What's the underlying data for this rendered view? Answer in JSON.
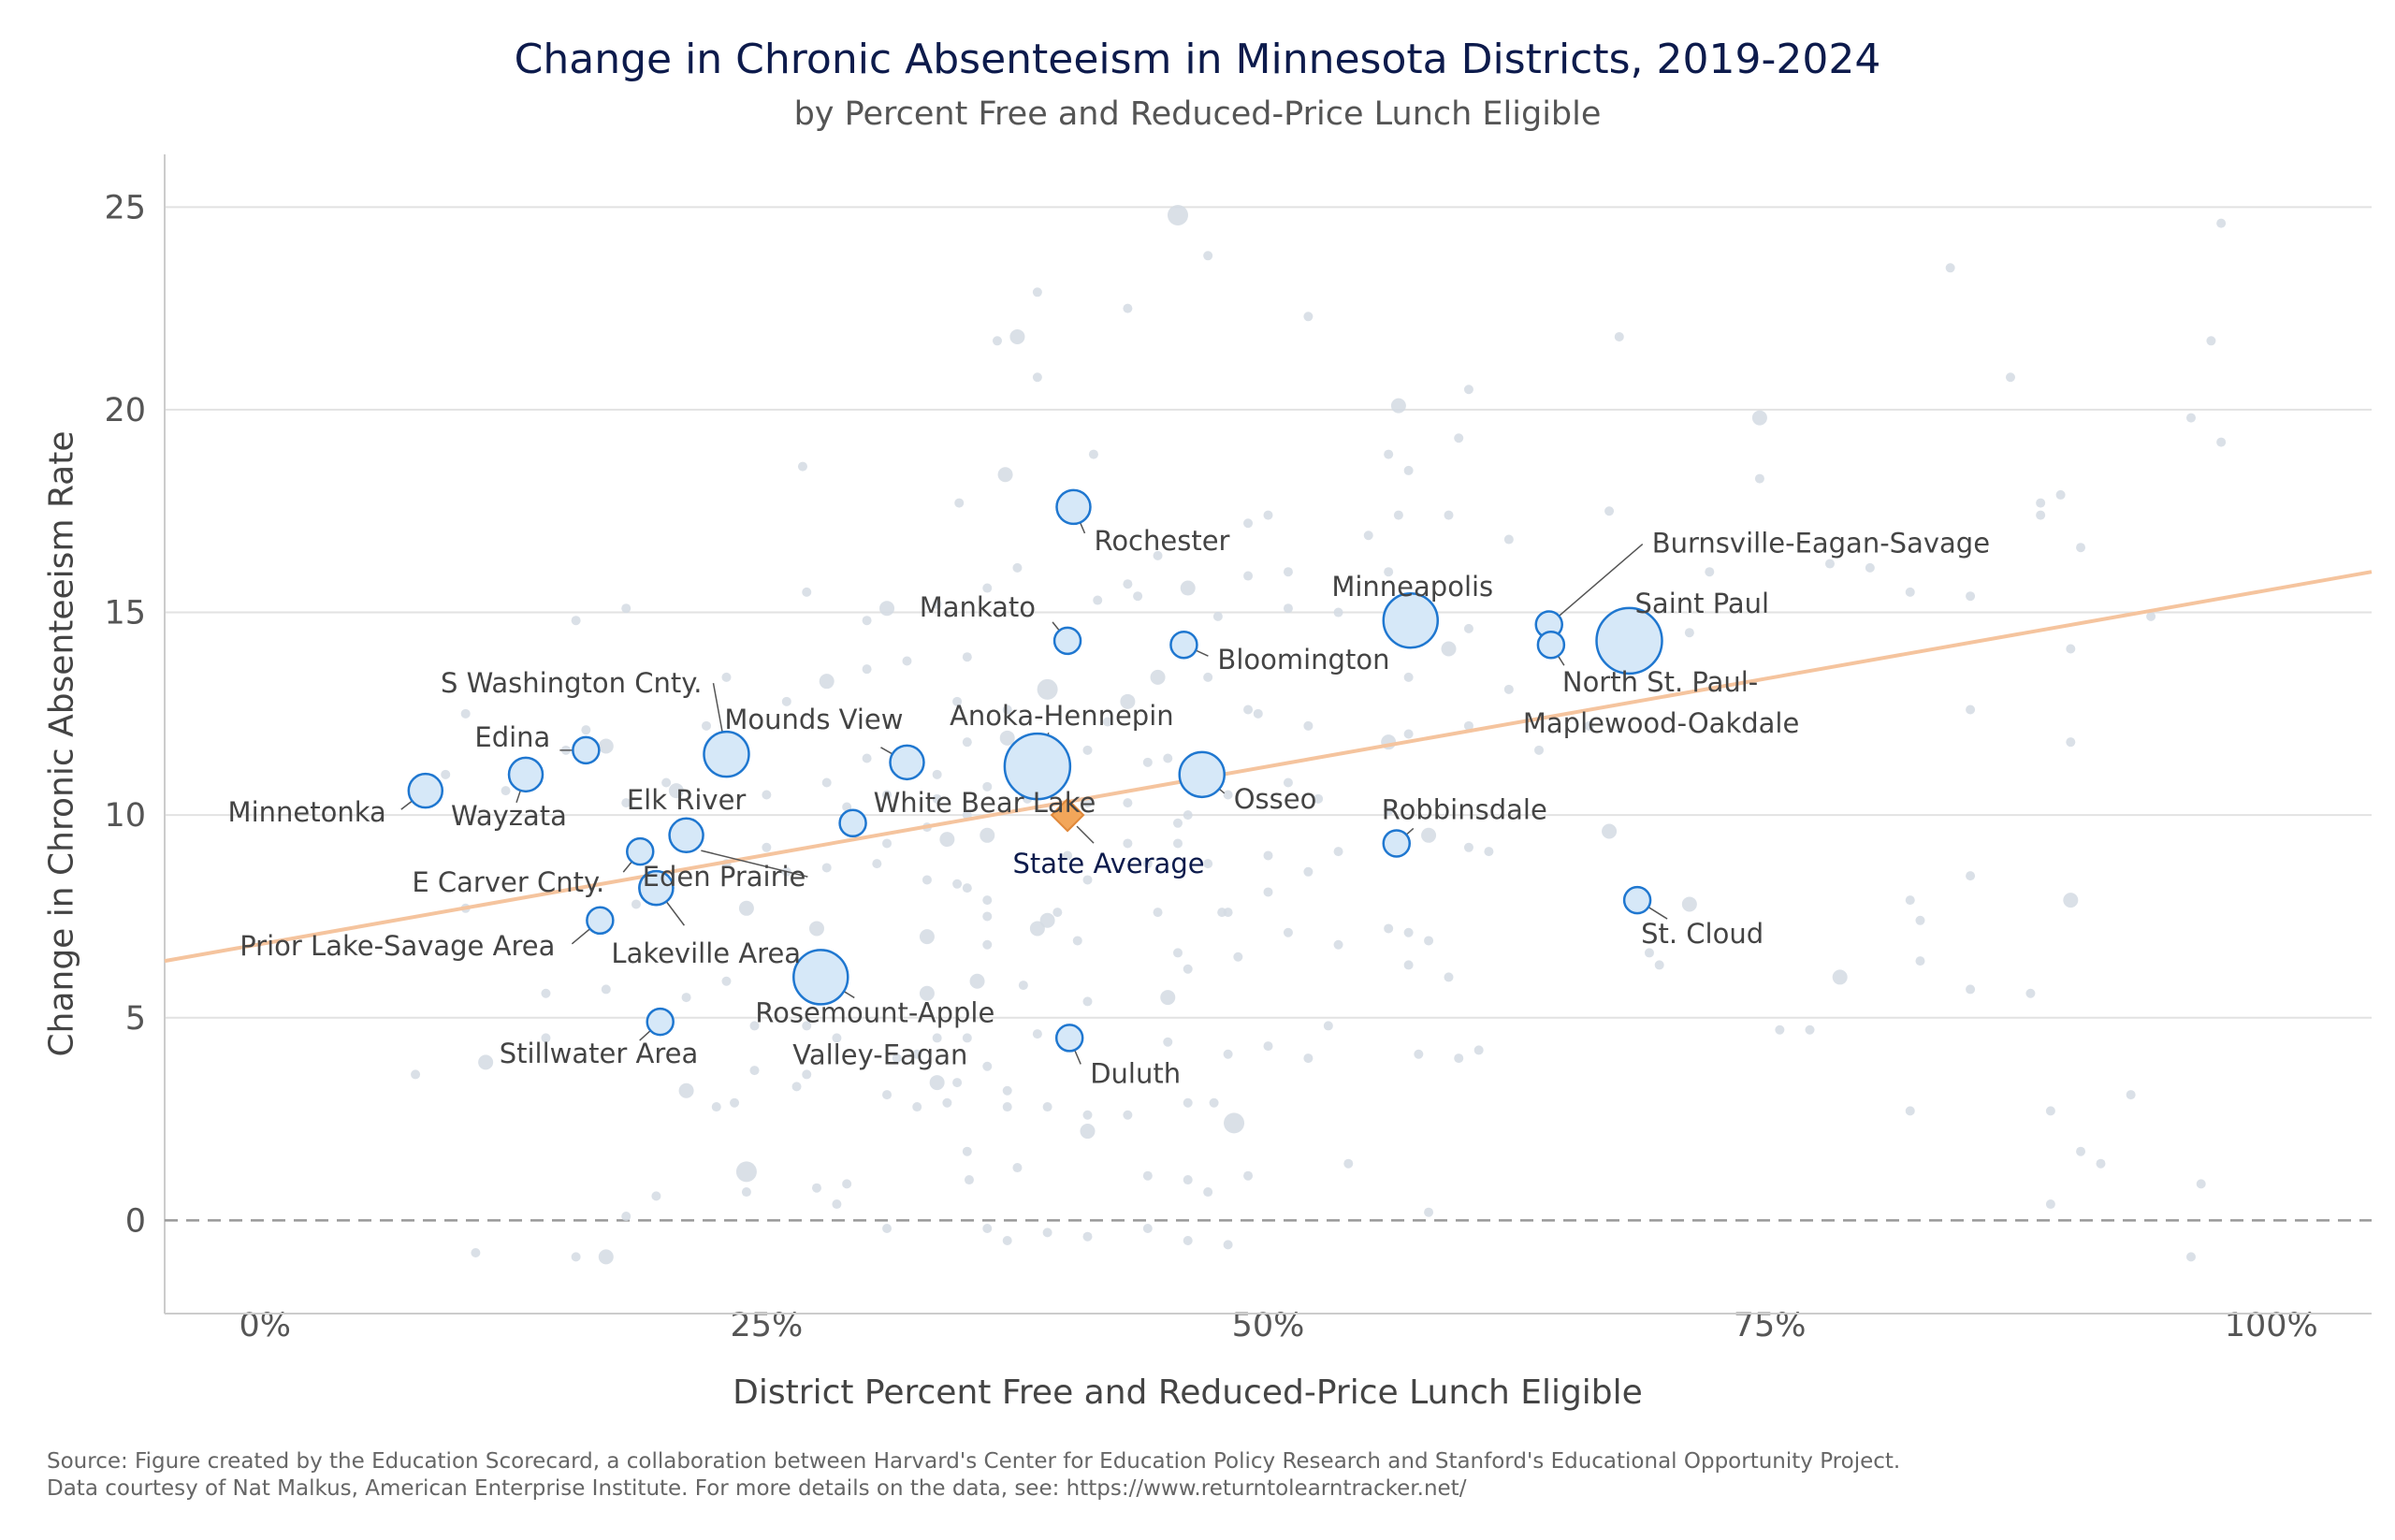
{
  "title": "Change in Chronic Absenteeism in Minnesota Districts, 2019-2024",
  "subtitle": "by Percent Free and Reduced-Price Lunch Eligible",
  "source_line1": "Source: Figure created by the Education Scorecard, a collaboration between Harvard's Center for Education Policy Research and Stanford's Educational Opportunity Project.",
  "source_line2": "Data courtesy of Nat Malkus, American Enterprise Institute. For more details on the data, see: https://www.returntolearntracker.net/",
  "colors": {
    "highlight_fill": "#d6e8f8",
    "highlight_stroke": "#1f77d0",
    "background_point": "#d4dbe3",
    "trend_line": "#f5c49e",
    "state_average": "#f2a65a",
    "zero_line": "#999999",
    "grid": "#e2e2e2"
  },
  "chart_data": {
    "type": "scatter",
    "xlabel": "District Percent Free and Reduced-Price Lunch Eligible",
    "ylabel": "Change in Chronic Absenteeism Rate",
    "xlim": [
      -0.05,
      1.05
    ],
    "ylim": [
      -2.3,
      26.3
    ],
    "x_ticks": [
      0,
      0.25,
      0.5,
      0.75,
      1.0
    ],
    "x_tick_labels": [
      "0%",
      "25%",
      "50%",
      "75%",
      "100%"
    ],
    "y_ticks": [
      0,
      5,
      10,
      15,
      20,
      25
    ],
    "y_tick_labels": [
      "0",
      "5",
      "10",
      "15",
      "20",
      "25"
    ],
    "grid": "horizontal",
    "reference_line_y": 0,
    "trend_line": {
      "x": [
        -0.05,
        1.05
      ],
      "y": [
        6.4,
        16.0
      ]
    },
    "highlighted_districts": [
      {
        "name": "Minnetonka",
        "x": 0.08,
        "y": 10.6,
        "size": 2
      },
      {
        "name": "Wayzata",
        "x": 0.13,
        "y": 11.0,
        "size": 2
      },
      {
        "name": "Edina",
        "x": 0.16,
        "y": 11.6,
        "size": 1
      },
      {
        "name": "S Washington Cnty.",
        "x": 0.23,
        "y": 11.5,
        "size": 3
      },
      {
        "name": "Elk River",
        "x": 0.21,
        "y": 9.5,
        "size": 2
      },
      {
        "name": "E Carver Cnty.",
        "x": 0.187,
        "y": 9.1,
        "size": 1
      },
      {
        "name": "Eden Prairie",
        "x": 0.195,
        "y": 8.2,
        "size": 2
      },
      {
        "name": "Prior Lake-Savage Area",
        "x": 0.167,
        "y": 7.4,
        "size": 1
      },
      {
        "name": "Lakeville Area",
        "x": 0.195,
        "y": 8.2,
        "size": 2
      },
      {
        "name": "Stillwater Area",
        "x": 0.197,
        "y": 4.9,
        "size": 1
      },
      {
        "name": "Mounds View",
        "x": 0.32,
        "y": 11.3,
        "size": 2
      },
      {
        "name": "White Bear Lake",
        "x": 0.293,
        "y": 9.8,
        "size": 1
      },
      {
        "name": "Rosemount-Apple Valley-Eagan",
        "x": 0.277,
        "y": 6.0,
        "size": 4
      },
      {
        "name": "Anoka-Hennepin",
        "x": 0.385,
        "y": 11.2,
        "size": 5
      },
      {
        "name": "Rochester",
        "x": 0.403,
        "y": 17.6,
        "size": 2
      },
      {
        "name": "Mankato",
        "x": 0.4,
        "y": 14.3,
        "size": 1
      },
      {
        "name": "Duluth",
        "x": 0.401,
        "y": 4.5,
        "size": 1
      },
      {
        "name": "Bloomington",
        "x": 0.458,
        "y": 14.2,
        "size": 1
      },
      {
        "name": "Osseo",
        "x": 0.467,
        "y": 11.0,
        "size": 3
      },
      {
        "name": "Minneapolis",
        "x": 0.571,
        "y": 14.8,
        "size": 4
      },
      {
        "name": "Robbinsdale",
        "x": 0.564,
        "y": 9.3,
        "size": 1
      },
      {
        "name": "Burnsville-Eagan-Savage",
        "x": 0.64,
        "y": 14.7,
        "size": 1
      },
      {
        "name": "North St. Paul-Maplewood-Oakdale",
        "x": 0.641,
        "y": 14.2,
        "size": 1
      },
      {
        "name": "Saint Paul",
        "x": 0.68,
        "y": 14.3,
        "size": 5
      },
      {
        "name": "St. Cloud",
        "x": 0.684,
        "y": 7.9,
        "size": 1
      }
    ],
    "state_average": {
      "name": "State Average",
      "x": 0.4,
      "y": 10.0
    },
    "background_points": [
      [
        0.455,
        24.8,
        3
      ],
      [
        0.375,
        21.8,
        2
      ],
      [
        0.47,
        23.8,
        1
      ],
      [
        0.385,
        22.9,
        1
      ],
      [
        0.43,
        22.5,
        1
      ],
      [
        0.365,
        21.7,
        1
      ],
      [
        0.52,
        22.3,
        1
      ],
      [
        0.6,
        20.5,
        1
      ],
      [
        0.675,
        21.8,
        1
      ],
      [
        0.97,
        21.7,
        1
      ],
      [
        0.975,
        24.6,
        1
      ],
      [
        0.84,
        23.5,
        1
      ],
      [
        0.87,
        20.8,
        1
      ],
      [
        0.385,
        20.8,
        1
      ],
      [
        0.565,
        20.1,
        2
      ],
      [
        0.745,
        19.8,
        2
      ],
      [
        0.96,
        19.8,
        1
      ],
      [
        0.975,
        19.2,
        1
      ],
      [
        0.595,
        19.3,
        1
      ],
      [
        0.369,
        18.4,
        2
      ],
      [
        0.268,
        18.6,
        1
      ],
      [
        0.56,
        18.9,
        1
      ],
      [
        0.57,
        18.5,
        1
      ],
      [
        0.885,
        17.7,
        1
      ],
      [
        0.895,
        17.9,
        1
      ],
      [
        0.885,
        17.4,
        1
      ],
      [
        0.745,
        18.3,
        1
      ],
      [
        0.413,
        18.9,
        1
      ],
      [
        0.55,
        16.9,
        1
      ],
      [
        0.62,
        16.8,
        1
      ],
      [
        0.49,
        17.2,
        1
      ],
      [
        0.5,
        17.4,
        1
      ],
      [
        0.346,
        17.7,
        1
      ],
      [
        0.565,
        17.4,
        1
      ],
      [
        0.59,
        17.4,
        1
      ],
      [
        0.67,
        17.5,
        1
      ],
      [
        0.56,
        16.0,
        1
      ],
      [
        0.905,
        16.6,
        1
      ],
      [
        0.375,
        16.1,
        1
      ],
      [
        0.445,
        16.4,
        1
      ],
      [
        0.43,
        15.7,
        1
      ],
      [
        0.435,
        15.4,
        1
      ],
      [
        0.415,
        15.3,
        1
      ],
      [
        0.46,
        15.6,
        2
      ],
      [
        0.49,
        15.9,
        1
      ],
      [
        0.51,
        16.0,
        1
      ],
      [
        0.27,
        15.5,
        1
      ],
      [
        0.155,
        14.8,
        1
      ],
      [
        0.18,
        15.1,
        1
      ],
      [
        0.31,
        15.1,
        2
      ],
      [
        0.3,
        14.8,
        1
      ],
      [
        0.335,
        15.2,
        1
      ],
      [
        0.36,
        15.6,
        1
      ],
      [
        0.475,
        14.9,
        1
      ],
      [
        0.51,
        15.1,
        1
      ],
      [
        0.535,
        15.0,
        1
      ],
      [
        0.6,
        14.6,
        1
      ],
      [
        0.72,
        16.0,
        1
      ],
      [
        0.78,
        16.2,
        1
      ],
      [
        0.8,
        16.1,
        1
      ],
      [
        0.82,
        15.5,
        1
      ],
      [
        0.85,
        15.4,
        1
      ],
      [
        0.71,
        14.5,
        1
      ],
      [
        0.94,
        14.9,
        1
      ],
      [
        0.28,
        13.3,
        2
      ],
      [
        0.3,
        13.6,
        1
      ],
      [
        0.32,
        13.8,
        1
      ],
      [
        0.35,
        13.9,
        1
      ],
      [
        0.39,
        13.1,
        3
      ],
      [
        0.37,
        12.6,
        1
      ],
      [
        0.345,
        12.8,
        1
      ],
      [
        0.43,
        12.8,
        2
      ],
      [
        0.445,
        13.4,
        2
      ],
      [
        0.47,
        13.4,
        1
      ],
      [
        0.49,
        12.6,
        1
      ],
      [
        0.495,
        12.5,
        1
      ],
      [
        0.42,
        12.3,
        1
      ],
      [
        0.23,
        13.4,
        1
      ],
      [
        0.26,
        12.8,
        1
      ],
      [
        0.22,
        12.2,
        1
      ],
      [
        0.16,
        12.1,
        1
      ],
      [
        0.17,
        11.7,
        2
      ],
      [
        0.1,
        12.5,
        1
      ],
      [
        0.09,
        11.0,
        1
      ],
      [
        0.12,
        10.6,
        1
      ],
      [
        0.15,
        11.6,
        1
      ],
      [
        0.57,
        13.4,
        1
      ],
      [
        0.59,
        14.1,
        2
      ],
      [
        0.57,
        12.0,
        1
      ],
      [
        0.62,
        13.1,
        1
      ],
      [
        0.6,
        12.2,
        1
      ],
      [
        0.66,
        12.2,
        1
      ],
      [
        0.635,
        11.6,
        1
      ],
      [
        0.56,
        11.8,
        2
      ],
      [
        0.52,
        12.2,
        1
      ],
      [
        0.9,
        14.1,
        1
      ],
      [
        0.9,
        11.8,
        1
      ],
      [
        0.85,
        12.6,
        1
      ],
      [
        0.225,
        11.3,
        1
      ],
      [
        0.235,
        11.5,
        2
      ],
      [
        0.25,
        10.5,
        1
      ],
      [
        0.28,
        10.8,
        1
      ],
      [
        0.3,
        11.4,
        1
      ],
      [
        0.335,
        11.0,
        1
      ],
      [
        0.35,
        11.8,
        1
      ],
      [
        0.36,
        10.7,
        1
      ],
      [
        0.37,
        11.9,
        2
      ],
      [
        0.41,
        11.6,
        1
      ],
      [
        0.44,
        11.3,
        1
      ],
      [
        0.45,
        11.4,
        1
      ],
      [
        0.48,
        10.5,
        1
      ],
      [
        0.51,
        10.8,
        1
      ],
      [
        0.525,
        10.4,
        1
      ],
      [
        0.56,
        10.1,
        1
      ],
      [
        0.29,
        10.2,
        1
      ],
      [
        0.31,
        10.5,
        1
      ],
      [
        0.335,
        10.4,
        1
      ],
      [
        0.35,
        10.0,
        1
      ],
      [
        0.38,
        10.4,
        1
      ],
      [
        0.41,
        10.3,
        1
      ],
      [
        0.43,
        10.3,
        1
      ],
      [
        0.455,
        9.8,
        1
      ],
      [
        0.46,
        10.0,
        1
      ],
      [
        0.2,
        10.8,
        1
      ],
      [
        0.205,
        10.6,
        2
      ],
      [
        0.18,
        10.3,
        1
      ],
      [
        0.33,
        9.7,
        1
      ],
      [
        0.34,
        9.4,
        2
      ],
      [
        0.36,
        9.5,
        2
      ],
      [
        0.31,
        9.3,
        1
      ],
      [
        0.305,
        8.8,
        1
      ],
      [
        0.33,
        8.4,
        1
      ],
      [
        0.345,
        8.3,
        1
      ],
      [
        0.4,
        9.0,
        1
      ],
      [
        0.43,
        9.3,
        1
      ],
      [
        0.44,
        8.8,
        1
      ],
      [
        0.455,
        9.3,
        1
      ],
      [
        0.47,
        8.8,
        1
      ],
      [
        0.5,
        9.0,
        1
      ],
      [
        0.52,
        8.6,
        1
      ],
      [
        0.535,
        9.1,
        1
      ],
      [
        0.58,
        9.5,
        2
      ],
      [
        0.6,
        9.2,
        1
      ],
      [
        0.61,
        9.1,
        1
      ],
      [
        0.67,
        9.6,
        2
      ],
      [
        0.28,
        8.7,
        1
      ],
      [
        0.26,
        8.6,
        1
      ],
      [
        0.23,
        8.8,
        1
      ],
      [
        0.25,
        9.2,
        1
      ],
      [
        0.41,
        8.4,
        1
      ],
      [
        0.5,
        8.1,
        1
      ],
      [
        0.48,
        7.6,
        1
      ],
      [
        0.445,
        7.6,
        1
      ],
      [
        0.35,
        8.2,
        1
      ],
      [
        0.36,
        7.9,
        1
      ],
      [
        0.36,
        7.5,
        1
      ],
      [
        0.71,
        7.8,
        2
      ],
      [
        0.82,
        7.9,
        1
      ],
      [
        0.9,
        7.9,
        2
      ],
      [
        0.825,
        7.4,
        1
      ],
      [
        0.85,
        8.5,
        1
      ],
      [
        0.185,
        7.8,
        1
      ],
      [
        0.17,
        7.5,
        1
      ],
      [
        0.1,
        7.7,
        1
      ],
      [
        0.24,
        7.7,
        2
      ],
      [
        0.275,
        7.2,
        2
      ],
      [
        0.33,
        7.0,
        2
      ],
      [
        0.36,
        6.8,
        1
      ],
      [
        0.385,
        7.2,
        2
      ],
      [
        0.39,
        7.4,
        2
      ],
      [
        0.395,
        7.6,
        1
      ],
      [
        0.405,
        6.9,
        1
      ],
      [
        0.455,
        6.6,
        1
      ],
      [
        0.46,
        6.2,
        1
      ],
      [
        0.477,
        7.6,
        1
      ],
      [
        0.485,
        6.5,
        1
      ],
      [
        0.51,
        7.1,
        1
      ],
      [
        0.535,
        6.8,
        1
      ],
      [
        0.56,
        7.2,
        1
      ],
      [
        0.57,
        7.1,
        1
      ],
      [
        0.58,
        6.9,
        1
      ],
      [
        0.57,
        6.3,
        1
      ],
      [
        0.59,
        6.0,
        1
      ],
      [
        0.69,
        6.6,
        1
      ],
      [
        0.695,
        6.3,
        1
      ],
      [
        0.785,
        6.0,
        2
      ],
      [
        0.825,
        6.4,
        1
      ],
      [
        0.85,
        5.7,
        1
      ],
      [
        0.88,
        5.6,
        1
      ],
      [
        0.14,
        5.6,
        1
      ],
      [
        0.17,
        5.7,
        1
      ],
      [
        0.21,
        5.5,
        1
      ],
      [
        0.23,
        5.9,
        1
      ],
      [
        0.33,
        5.6,
        2
      ],
      [
        0.355,
        5.9,
        2
      ],
      [
        0.378,
        5.8,
        1
      ],
      [
        0.41,
        5.4,
        1
      ],
      [
        0.45,
        5.5,
        2
      ],
      [
        0.53,
        4.8,
        1
      ],
      [
        0.45,
        4.4,
        1
      ],
      [
        0.48,
        4.1,
        1
      ],
      [
        0.5,
        4.3,
        1
      ],
      [
        0.52,
        4.0,
        1
      ],
      [
        0.575,
        4.1,
        1
      ],
      [
        0.595,
        4.0,
        1
      ],
      [
        0.605,
        4.2,
        1
      ],
      [
        0.755,
        4.7,
        1
      ],
      [
        0.77,
        4.7,
        1
      ],
      [
        0.385,
        4.6,
        1
      ],
      [
        0.35,
        4.5,
        1
      ],
      [
        0.335,
        4.5,
        1
      ],
      [
        0.325,
        4.1,
        1
      ],
      [
        0.315,
        4.0,
        1
      ],
      [
        0.285,
        4.5,
        1
      ],
      [
        0.27,
        3.6,
        1
      ],
      [
        0.244,
        3.7,
        1
      ],
      [
        0.244,
        4.8,
        1
      ],
      [
        0.27,
        4.8,
        1
      ],
      [
        0.14,
        4.5,
        1
      ],
      [
        0.11,
        3.9,
        2
      ],
      [
        0.075,
        3.6,
        1
      ],
      [
        0.335,
        3.4,
        2
      ],
      [
        0.345,
        3.4,
        1
      ],
      [
        0.36,
        3.8,
        1
      ],
      [
        0.37,
        3.2,
        1
      ],
      [
        0.37,
        2.8,
        1
      ],
      [
        0.34,
        2.9,
        1
      ],
      [
        0.325,
        2.8,
        1
      ],
      [
        0.265,
        3.3,
        1
      ],
      [
        0.234,
        2.9,
        1
      ],
      [
        0.225,
        2.8,
        1
      ],
      [
        0.21,
        3.2,
        2
      ],
      [
        0.31,
        3.1,
        1
      ],
      [
        0.41,
        2.6,
        1
      ],
      [
        0.43,
        2.6,
        1
      ],
      [
        0.46,
        2.9,
        1
      ],
      [
        0.473,
        2.9,
        1
      ],
      [
        0.483,
        2.4,
        3
      ],
      [
        0.41,
        2.2,
        2
      ],
      [
        0.39,
        2.8,
        1
      ],
      [
        0.82,
        2.7,
        1
      ],
      [
        0.89,
        2.7,
        1
      ],
      [
        0.93,
        3.1,
        1
      ],
      [
        0.54,
        1.4,
        1
      ],
      [
        0.49,
        1.1,
        1
      ],
      [
        0.46,
        1.0,
        1
      ],
      [
        0.44,
        1.1,
        1
      ],
      [
        0.35,
        1.7,
        1
      ],
      [
        0.351,
        1.0,
        1
      ],
      [
        0.375,
        1.3,
        1
      ],
      [
        0.47,
        0.7,
        1
      ],
      [
        0.24,
        1.2,
        3
      ],
      [
        0.24,
        0.7,
        1
      ],
      [
        0.29,
        0.9,
        1
      ],
      [
        0.275,
        0.8,
        1
      ],
      [
        0.285,
        0.4,
        1
      ],
      [
        0.195,
        0.6,
        1
      ],
      [
        0.905,
        1.7,
        1
      ],
      [
        0.915,
        1.4,
        1
      ],
      [
        0.965,
        0.9,
        1
      ],
      [
        0.31,
        -0.2,
        1
      ],
      [
        0.37,
        -0.5,
        1
      ],
      [
        0.36,
        -0.2,
        1
      ],
      [
        0.41,
        -0.4,
        1
      ],
      [
        0.44,
        -0.2,
        1
      ],
      [
        0.39,
        -0.3,
        1
      ],
      [
        0.46,
        -0.5,
        1
      ],
      [
        0.48,
        -0.6,
        1
      ],
      [
        0.58,
        0.2,
        1
      ],
      [
        0.89,
        0.4,
        1
      ],
      [
        0.96,
        -0.9,
        1
      ],
      [
        0.105,
        -0.8,
        1
      ],
      [
        0.155,
        -0.9,
        1
      ],
      [
        0.17,
        -0.9,
        2
      ],
      [
        0.18,
        0.1,
        1
      ]
    ]
  }
}
